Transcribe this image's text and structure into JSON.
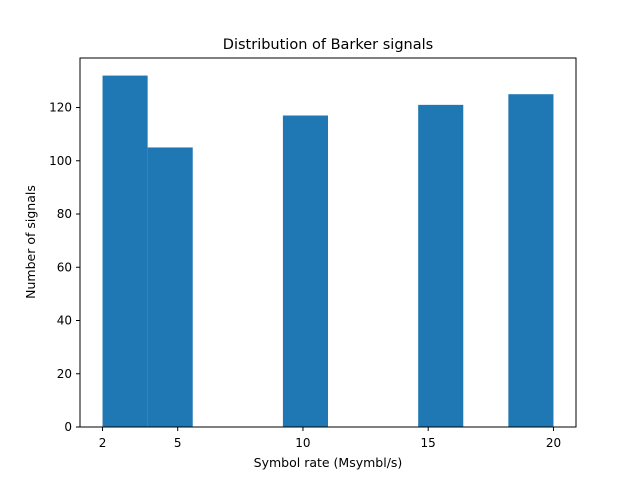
{
  "chart_data": {
    "type": "bar",
    "title": "Distribution of Barker signals",
    "xlabel": "Symbol rate (Msymbl/s)",
    "ylabel": "Number of signals",
    "bins": [
      {
        "x0": 2.0,
        "x1": 3.8,
        "value": 132
      },
      {
        "x0": 3.8,
        "x1": 5.6,
        "value": 105
      },
      {
        "x0": 5.6,
        "x1": 7.4,
        "value": 0
      },
      {
        "x0": 7.4,
        "x1": 9.2,
        "value": 0
      },
      {
        "x0": 9.2,
        "x1": 11.0,
        "value": 117
      },
      {
        "x0": 11.0,
        "x1": 12.8,
        "value": 0
      },
      {
        "x0": 12.8,
        "x1": 14.6,
        "value": 0
      },
      {
        "x0": 14.6,
        "x1": 16.4,
        "value": 121
      },
      {
        "x0": 16.4,
        "x1": 18.2,
        "value": 0
      },
      {
        "x0": 18.2,
        "x1": 20.0,
        "value": 125
      }
    ],
    "xlim": [
      1.1,
      20.9
    ],
    "ylim": [
      0,
      138.6
    ],
    "xticks": [
      2,
      5,
      10,
      15,
      20
    ],
    "yticks": [
      0,
      20,
      40,
      60,
      80,
      100,
      120
    ],
    "bar_color": "#1f77b4",
    "grid": false,
    "legend": "none"
  }
}
